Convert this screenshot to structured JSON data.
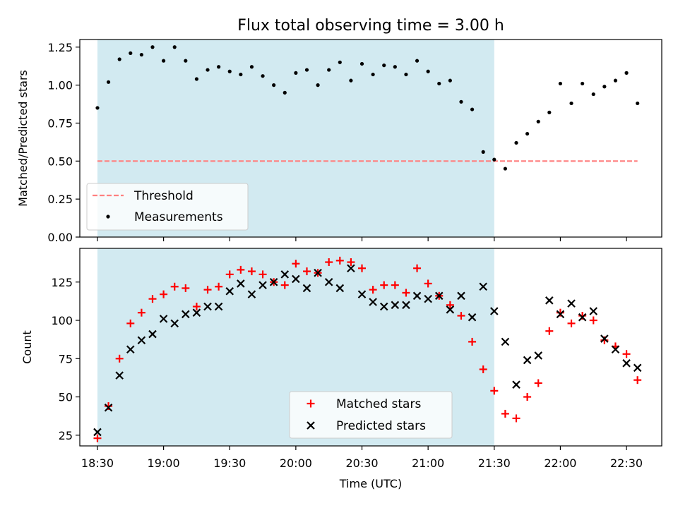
{
  "title": "Flux total observing time = 3.00 h",
  "shade_color": "#add8e6",
  "chart_data": [
    {
      "type": "scatter",
      "ylabel": "Matched/Predicted stars",
      "xlim": [
        "18:22",
        "22:46"
      ],
      "ylim": [
        0,
        1.3
      ],
      "yticks": [
        0,
        0.25,
        0.5,
        0.75,
        1.0,
        1.25
      ],
      "ytick_labels": [
        "0.00",
        "0.25",
        "0.50",
        "0.75",
        "1.00",
        "1.25"
      ],
      "observing_window": [
        "18:30",
        "21:30"
      ],
      "threshold": {
        "name": "Threshold",
        "value": 0.5,
        "x_range": [
          "18:30",
          "22:35"
        ],
        "color": "#ff7f7f",
        "style": "dashed"
      },
      "series": [
        {
          "name": "Measurements",
          "color": "#000000",
          "marker": "dot",
          "x": [
            "18:30",
            "18:35",
            "18:40",
            "18:45",
            "18:50",
            "18:55",
            "19:00",
            "19:05",
            "19:10",
            "19:15",
            "19:20",
            "19:25",
            "19:30",
            "19:35",
            "19:40",
            "19:45",
            "19:50",
            "19:55",
            "20:00",
            "20:05",
            "20:10",
            "20:15",
            "20:20",
            "20:25",
            "20:30",
            "20:35",
            "20:40",
            "20:45",
            "20:50",
            "20:55",
            "21:00",
            "21:05",
            "21:10",
            "21:15",
            "21:20",
            "21:25",
            "21:30",
            "21:35",
            "21:40",
            "21:45",
            "21:50",
            "21:55",
            "22:00",
            "22:05",
            "22:10",
            "22:15",
            "22:20",
            "22:25",
            "22:30",
            "22:35"
          ],
          "y": [
            0.85,
            1.02,
            1.17,
            1.21,
            1.2,
            1.25,
            1.16,
            1.25,
            1.16,
            1.04,
            1.1,
            1.12,
            1.09,
            1.07,
            1.12,
            1.06,
            1.0,
            0.95,
            1.08,
            1.1,
            1.0,
            1.1,
            1.15,
            1.03,
            1.14,
            1.07,
            1.13,
            1.12,
            1.07,
            1.16,
            1.09,
            1.01,
            1.03,
            0.89,
            0.84,
            0.56,
            0.51,
            0.45,
            0.62,
            0.68,
            0.76,
            0.82,
            1.01,
            0.88,
            1.01,
            0.94,
            0.99,
            1.03,
            1.08,
            0.88
          ]
        }
      ],
      "legend": {
        "position": "lower-left",
        "entries": [
          "Threshold",
          "Measurements"
        ]
      }
    },
    {
      "type": "scatter",
      "xlabel": "Time (UTC)",
      "ylabel": "Count",
      "xlim": [
        "18:22",
        "22:46"
      ],
      "ylim": [
        18,
        147
      ],
      "yticks": [
        25,
        50,
        75,
        100,
        125
      ],
      "ytick_labels": [
        "25",
        "50",
        "75",
        "100",
        "125"
      ],
      "xticks": [
        "18:30",
        "19:00",
        "19:30",
        "20:00",
        "20:30",
        "21:00",
        "21:30",
        "22:00",
        "22:30"
      ],
      "observing_window": [
        "18:30",
        "21:30"
      ],
      "series": [
        {
          "name": "Matched stars",
          "color": "#ff0000",
          "marker": "plus",
          "x": [
            "18:30",
            "18:35",
            "18:40",
            "18:45",
            "18:50",
            "18:55",
            "19:00",
            "19:05",
            "19:10",
            "19:15",
            "19:20",
            "19:25",
            "19:30",
            "19:35",
            "19:40",
            "19:45",
            "19:50",
            "19:55",
            "20:00",
            "20:05",
            "20:10",
            "20:15",
            "20:20",
            "20:25",
            "20:30",
            "20:35",
            "20:40",
            "20:45",
            "20:50",
            "20:55",
            "21:00",
            "21:05",
            "21:10",
            "21:15",
            "21:20",
            "21:25",
            "21:30",
            "21:35",
            "21:40",
            "21:45",
            "21:50",
            "21:55",
            "22:00",
            "22:05",
            "22:10",
            "22:15",
            "22:20",
            "22:25",
            "22:30",
            "22:35"
          ],
          "y": [
            23,
            44,
            75,
            98,
            105,
            114,
            117,
            122,
            121,
            109,
            120,
            122,
            130,
            133,
            132,
            130,
            125,
            123,
            137,
            132,
            131,
            138,
            139,
            138,
            134,
            120,
            123,
            123,
            118,
            134,
            124,
            116,
            110,
            103,
            86,
            68,
            54,
            39,
            36,
            50,
            59,
            93,
            105,
            98,
            103,
            100,
            87,
            83,
            78,
            61
          ]
        },
        {
          "name": "Predicted stars",
          "color": "#000000",
          "marker": "x",
          "x": [
            "18:30",
            "18:35",
            "18:40",
            "18:45",
            "18:50",
            "18:55",
            "19:00",
            "19:05",
            "19:10",
            "19:15",
            "19:20",
            "19:25",
            "19:30",
            "19:35",
            "19:40",
            "19:45",
            "19:50",
            "19:55",
            "20:00",
            "20:05",
            "20:10",
            "20:15",
            "20:20",
            "20:25",
            "20:30",
            "20:35",
            "20:40",
            "20:45",
            "20:50",
            "20:55",
            "21:00",
            "21:05",
            "21:10",
            "21:15",
            "21:20",
            "21:25",
            "21:30",
            "21:35",
            "21:40",
            "21:45",
            "21:50",
            "21:55",
            "22:00",
            "22:05",
            "22:10",
            "22:15",
            "22:20",
            "22:25",
            "22:30",
            "22:35"
          ],
          "y": [
            27,
            43,
            64,
            81,
            87,
            91,
            101,
            98,
            104,
            105,
            109,
            109,
            119,
            124,
            117,
            123,
            125,
            130,
            127,
            121,
            131,
            125,
            121,
            134,
            117,
            112,
            109,
            110,
            110,
            116,
            114,
            116,
            107,
            116,
            102,
            122,
            106,
            86,
            58,
            74,
            77,
            113,
            104,
            111,
            102,
            106,
            88,
            81,
            72,
            69
          ]
        }
      ],
      "legend": {
        "position": "lower-center",
        "entries": [
          "Matched stars",
          "Predicted stars"
        ]
      }
    }
  ]
}
